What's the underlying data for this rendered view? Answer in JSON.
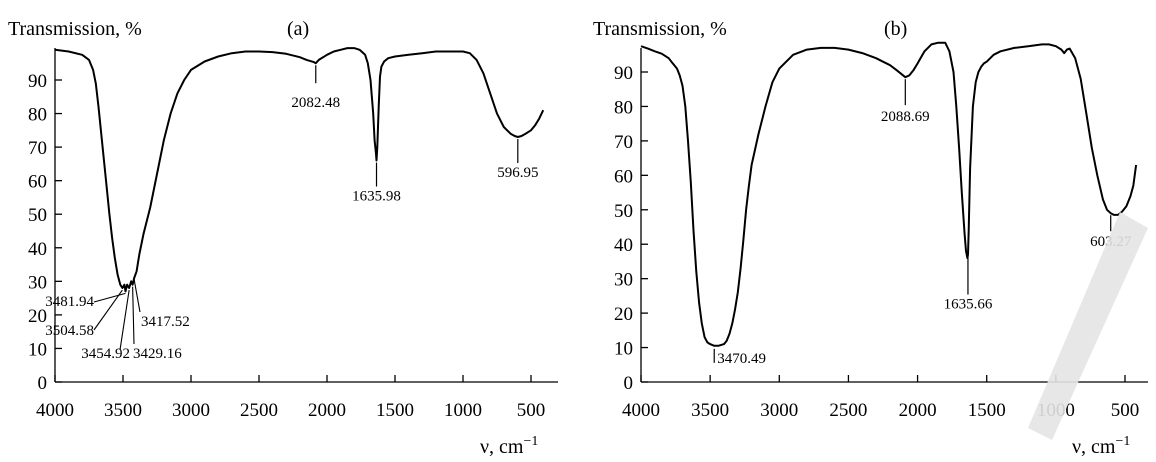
{
  "chart_data": [
    {
      "type": "line",
      "panel_label": "(a)",
      "ylabel": "Transmission, %",
      "xlabel": "ν, cm",
      "xlabel_sup": "−1",
      "xlim": [
        4000,
        400
      ],
      "ylim": [
        0,
        100
      ],
      "xticks": [
        "4000",
        "3500",
        "3000",
        "2500",
        "2000",
        "1500",
        "1000",
        "500"
      ],
      "yticks": [
        "0",
        "10",
        "20",
        "30",
        "40",
        "50",
        "60",
        "70",
        "80",
        "90"
      ],
      "series": [
        {
          "x": [
            4000,
            3900,
            3800,
            3750,
            3720,
            3700,
            3680,
            3650,
            3620,
            3600,
            3580,
            3560,
            3540,
            3520,
            3504.58,
            3490,
            3481.94,
            3470,
            3454.92,
            3440,
            3429.16,
            3417.52,
            3400,
            3380,
            3350,
            3300,
            3250,
            3200,
            3150,
            3100,
            3050,
            3000,
            2900,
            2800,
            2700,
            2600,
            2500,
            2400,
            2300,
            2200,
            2150,
            2100,
            2082.48,
            2060,
            2000,
            1950,
            1900,
            1850,
            1800,
            1760,
            1720,
            1700,
            1680,
            1660,
            1650,
            1640,
            1635.98,
            1630,
            1620,
            1610,
            1600,
            1580,
            1550,
            1500,
            1400,
            1300,
            1200,
            1100,
            1050,
            1000,
            950,
            900,
            850,
            800,
            750,
            700,
            650,
            620,
            596.95,
            570,
            540,
            500,
            470,
            440,
            410
          ],
          "y": [
            99,
            98.5,
            97.5,
            96,
            93,
            89,
            82,
            70,
            58,
            50,
            43,
            37,
            32,
            29,
            28,
            29,
            27,
            29,
            28,
            30,
            29,
            31,
            33,
            38,
            44,
            52,
            62,
            72,
            80,
            86,
            90,
            93,
            95.5,
            97,
            98,
            98.5,
            98.5,
            98.3,
            97.8,
            96.8,
            96,
            95.4,
            95,
            96,
            97.5,
            98.5,
            99,
            99.5,
            99.5,
            99,
            97.5,
            95,
            90,
            80,
            72,
            68,
            66,
            70,
            82,
            91,
            94,
            95.5,
            96.5,
            97,
            97.5,
            98,
            98.5,
            98.5,
            98.5,
            98.5,
            98,
            96,
            92,
            86,
            80,
            76,
            74,
            73.3,
            73,
            73.3,
            74,
            75,
            76.5,
            78.5,
            81
          ]
        }
      ],
      "annotations": [
        {
          "text": "2082.48",
          "x": 2082.48
        },
        {
          "text": "1635.98",
          "x": 1635.98
        },
        {
          "text": "596.95",
          "x": 596.95
        },
        {
          "text": "3481.94",
          "x": 3481.94
        },
        {
          "text": "3504.58",
          "x": 3504.58
        },
        {
          "text": "3454.92",
          "x": 3454.92
        },
        {
          "text": "3429.16",
          "x": 3429.16
        },
        {
          "text": "3417.52",
          "x": 3417.52
        }
      ]
    },
    {
      "type": "line",
      "panel_label": "(b)",
      "ylabel": "Transmission, %",
      "xlabel": "ν, cm",
      "xlabel_sup": "−1",
      "xlim": [
        4000,
        400
      ],
      "ylim": [
        0,
        100
      ],
      "xticks": [
        "4000",
        "3500",
        "3000",
        "2500",
        "2000",
        "1500",
        "1000",
        "500"
      ],
      "yticks": [
        "0",
        "10",
        "20",
        "30",
        "40",
        "50",
        "60",
        "70",
        "80",
        "90"
      ],
      "series": [
        {
          "x": [
            4000,
            3950,
            3900,
            3850,
            3800,
            3780,
            3760,
            3740,
            3720,
            3700,
            3680,
            3660,
            3640,
            3620,
            3600,
            3580,
            3560,
            3540,
            3520,
            3500,
            3470.49,
            3440,
            3400,
            3380,
            3360,
            3340,
            3320,
            3300,
            3280,
            3260,
            3240,
            3220,
            3200,
            3150,
            3100,
            3050,
            3000,
            2900,
            2800,
            2700,
            2600,
            2500,
            2400,
            2300,
            2250,
            2200,
            2150,
            2120,
            2088.69,
            2060,
            2030,
            2000,
            1950,
            1900,
            1850,
            1800,
            1770,
            1740,
            1720,
            1700,
            1680,
            1660,
            1650,
            1640,
            1635.66,
            1630,
            1620,
            1600,
            1580,
            1560,
            1540,
            1520,
            1500,
            1450,
            1400,
            1300,
            1200,
            1100,
            1050,
            1000,
            960,
            940,
            920,
            900,
            860,
            820,
            780,
            740,
            700,
            660,
            630,
            603.27,
            580,
            550,
            520,
            490,
            460,
            440,
            420
          ],
          "y": [
            97.5,
            96.8,
            96,
            95.3,
            94,
            93,
            92,
            91,
            89,
            86,
            80,
            70,
            58,
            44,
            32,
            23,
            17,
            13,
            11.5,
            11,
            10.5,
            10.5,
            11,
            12,
            14,
            17,
            21,
            26,
            33,
            41,
            50,
            57,
            63,
            72,
            80,
            87,
            91,
            95,
            96.5,
            97,
            97,
            96.5,
            95.5,
            94,
            93,
            92,
            90.5,
            89.5,
            88.5,
            89,
            90.5,
            92.5,
            96,
            98,
            98.5,
            98.5,
            96,
            90,
            80,
            68,
            55,
            43,
            38,
            36,
            37,
            44,
            62,
            80,
            87,
            90,
            91.5,
            92.5,
            93,
            95,
            96,
            97,
            97.5,
            98,
            98,
            97.5,
            96.5,
            95.5,
            96.5,
            96.8,
            94,
            88,
            78,
            68,
            60,
            53,
            50,
            49,
            48.5,
            48.5,
            49.5,
            51,
            54,
            57,
            63
          ]
        }
      ],
      "annotations": [
        {
          "text": "2088.69",
          "x": 2088.69
        },
        {
          "text": "1635.66",
          "x": 1635.66
        },
        {
          "text": "603.27",
          "x": 603.27
        },
        {
          "text": "3470.49",
          "x": 3470.49
        }
      ]
    }
  ]
}
